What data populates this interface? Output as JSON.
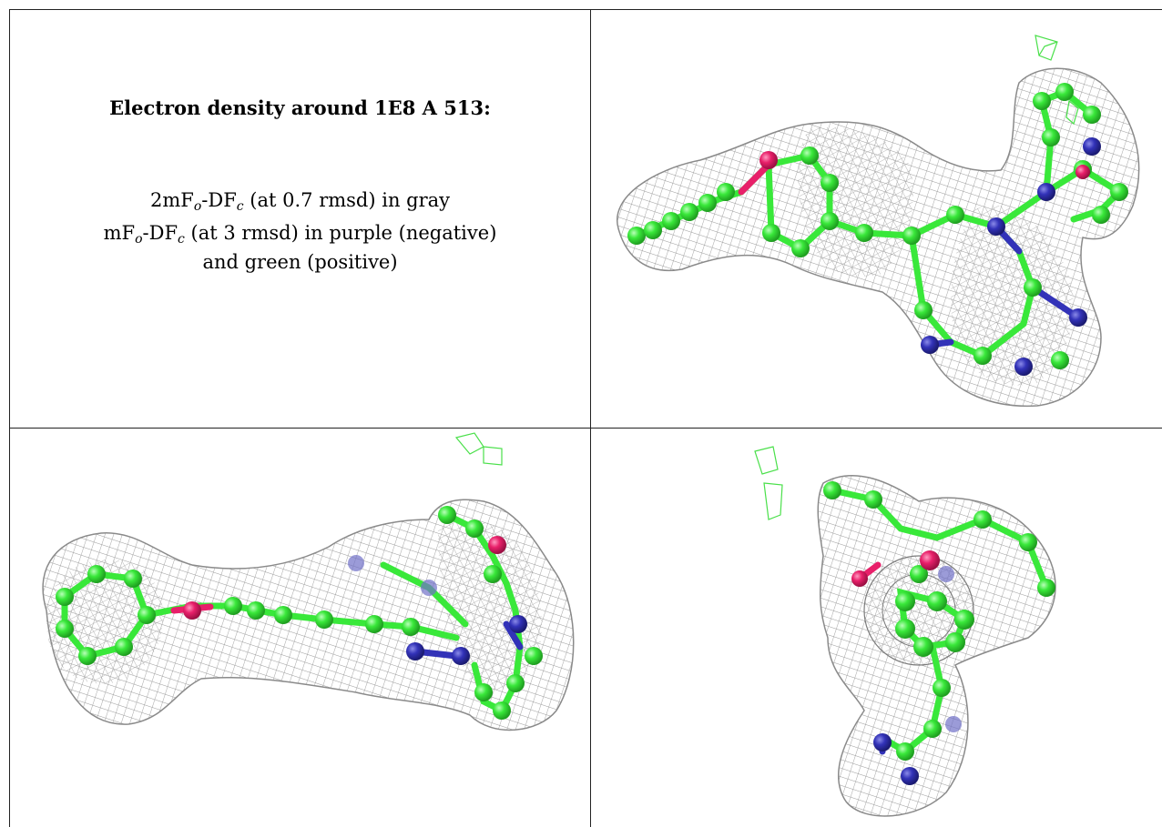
{
  "caption": {
    "title": "Electron density around 1E8 A 513:",
    "line1_pre": "2mF",
    "line1_sub1": "o",
    "line1_mid": "-DF",
    "line1_sub2": "c",
    "line1_post": " (at 0.7 rmsd) in gray",
    "line2_pre": "mF",
    "line2_sub1": "o",
    "line2_mid": "-DF",
    "line2_sub2": "c",
    "line2_post": " (at 3 rmsd) in purple (negative)",
    "line3": "and green (positive)"
  },
  "colors": {
    "carbon": "#39e83a",
    "nitrogen": "#3232b8",
    "oxygen": "#e8206a",
    "mesh_gray": "#9a9a9a",
    "mesh_green": "#4ae04a"
  }
}
